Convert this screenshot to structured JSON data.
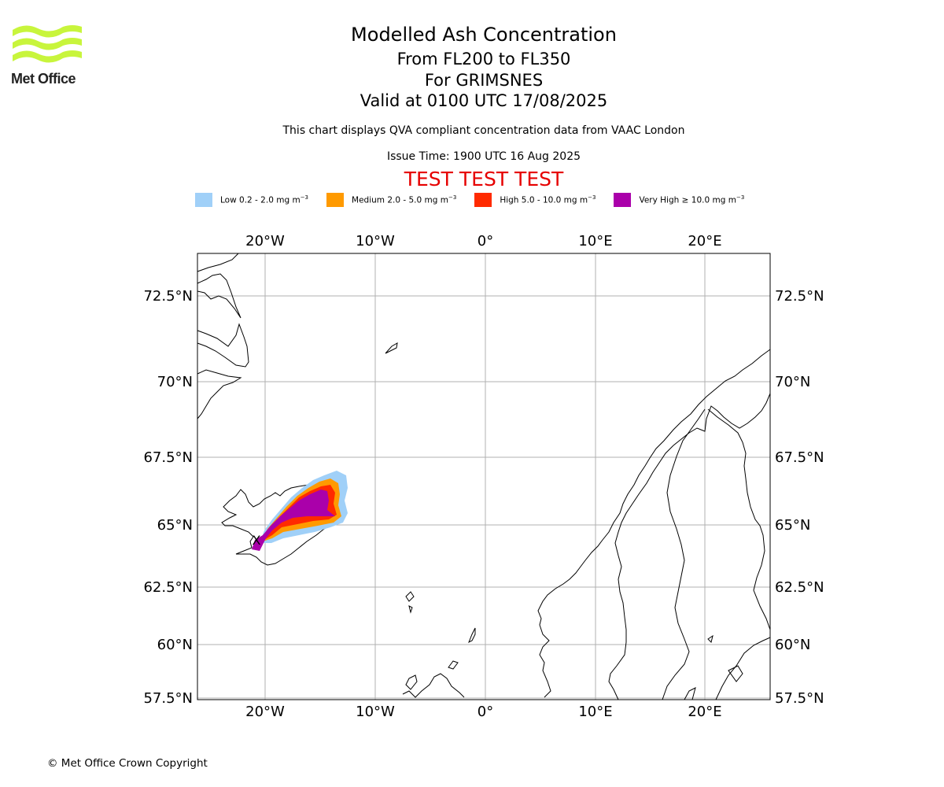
{
  "logo": {
    "name": "Met Office"
  },
  "titles": {
    "line1": "Modelled Ash Concentration",
    "line2": "From FL200 to FL350",
    "line3": "For GRIMSNES",
    "line4": "Valid at 0100 UTC 17/08/2025"
  },
  "description": "This chart displays QVA compliant concentration data from VAAC London",
  "issue_time": "Issue Time: 1900 UTC 16 Aug 2025",
  "test_banner": "TEST TEST TEST",
  "legend": [
    {
      "label": "Low 0.2 - 2.0 mg m",
      "color": "#a0d0f8"
    },
    {
      "label": "Medium 2.0 - 5.0 mg m",
      "color": "#ff9a00"
    },
    {
      "label": "High 5.0 - 10.0 mg m",
      "color": "#ff2a00"
    },
    {
      "label": "Very High ≥ 10.0 mg m",
      "color": "#aa00aa"
    }
  ],
  "legend_unit_exponent": "−3",
  "map": {
    "lon_labels": [
      "20°W",
      "10°W",
      "0°",
      "10°E",
      "20°E"
    ],
    "lat_labels": [
      "72.5°N",
      "70°N",
      "67.5°N",
      "65°N",
      "62.5°N",
      "60°N",
      "57.5°N"
    ],
    "volcano_marker": "X"
  },
  "copyright": "© Met Office Crown Copyright"
}
